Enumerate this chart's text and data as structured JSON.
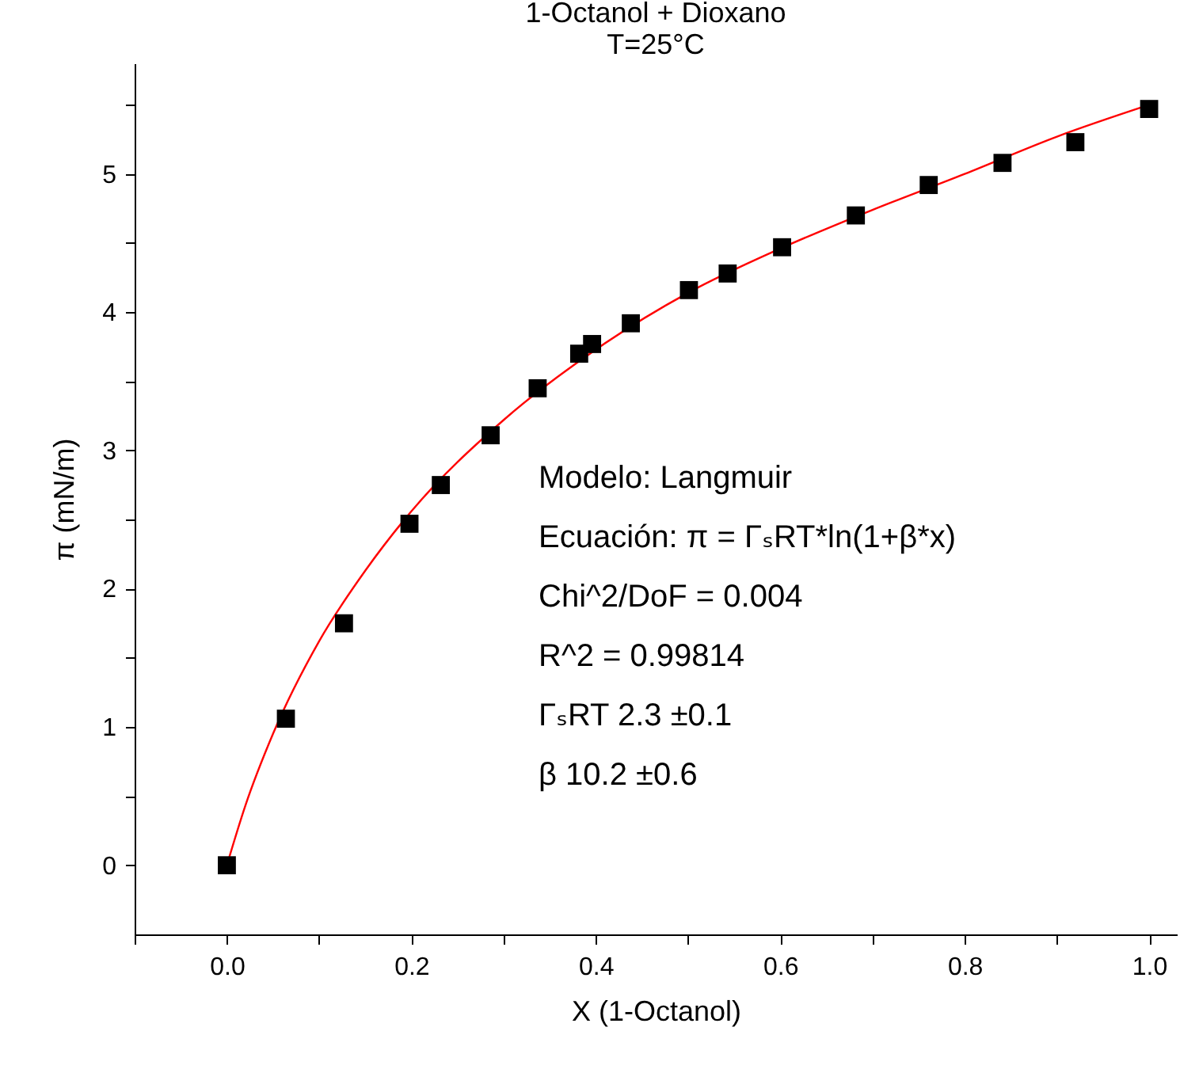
{
  "chart_data": {
    "type": "scatter",
    "title": "1-Octanol + Dioxano",
    "subtitle": "T=25°C",
    "xlabel": "X (1-Octanol)",
    "ylabel": "π (mN/m)",
    "xlim": [
      -0.1,
      1.03
    ],
    "ylim": [
      -0.5,
      5.8
    ],
    "xticks": [
      {
        "value": -0.1,
        "label": null
      },
      {
        "value": 0,
        "label": "0.0"
      },
      {
        "value": 0.1,
        "label": null
      },
      {
        "value": 0.2,
        "label": "0.2"
      },
      {
        "value": 0.3,
        "label": null
      },
      {
        "value": 0.4,
        "label": "0.4"
      },
      {
        "value": 0.5,
        "label": null
      },
      {
        "value": 0.6,
        "label": "0.6"
      },
      {
        "value": 0.7,
        "label": null
      },
      {
        "value": 0.8,
        "label": "0.8"
      },
      {
        "value": 0.9,
        "label": null
      },
      {
        "value": 1,
        "label": "1.0"
      }
    ],
    "yticks": [
      0,
      {
        "value": 0.5,
        "label": null
      },
      1,
      {
        "value": 1.5,
        "label": null
      },
      2,
      {
        "value": 2.5,
        "label": null
      },
      3,
      {
        "value": 3.5,
        "label": null
      },
      4,
      {
        "value": 4.5,
        "label": null
      },
      5,
      {
        "value": 5.5,
        "label": null
      }
    ],
    "grid": false,
    "annotations": [
      "Modelo: Langmuir",
      "Ecuación: π = ΓₛRT*ln(1+β*x)",
      "Chi^2/DoF        = 0.004",
      "R^2     =  0.99814",
      "ΓₛRT     2.3       ±0.1",
      "β          10.2      ±0.6"
    ],
    "series": [
      {
        "type": "scatter",
        "marker": "square",
        "color": "#000000",
        "x": [
          0,
          0.064,
          0.127,
          0.198,
          0.232,
          0.286,
          0.337,
          0.382,
          0.396,
          0.438,
          0.501,
          0.543,
          0.602,
          0.682,
          0.761,
          0.841,
          0.92,
          1.0
        ],
        "values": [
          0,
          1.06,
          1.75,
          2.47,
          2.75,
          3.11,
          3.45,
          3.7,
          3.77,
          3.92,
          4.16,
          4.28,
          4.47,
          4.7,
          4.92,
          5.08,
          5.23,
          5.47
        ]
      },
      {
        "type": "line",
        "marker": "none",
        "color": "#ff0000",
        "x": [
          0,
          0.02,
          0.05,
          0.1,
          0.15,
          0.2,
          0.3,
          0.4,
          0.5,
          0.6,
          0.7,
          0.8,
          0.9,
          1.0
        ],
        "values": [
          0,
          0.43,
          0.95,
          1.62,
          2.13,
          2.56,
          3.22,
          3.73,
          4.14,
          4.46,
          4.74,
          5.0,
          5.27,
          5.5
        ]
      }
    ]
  }
}
